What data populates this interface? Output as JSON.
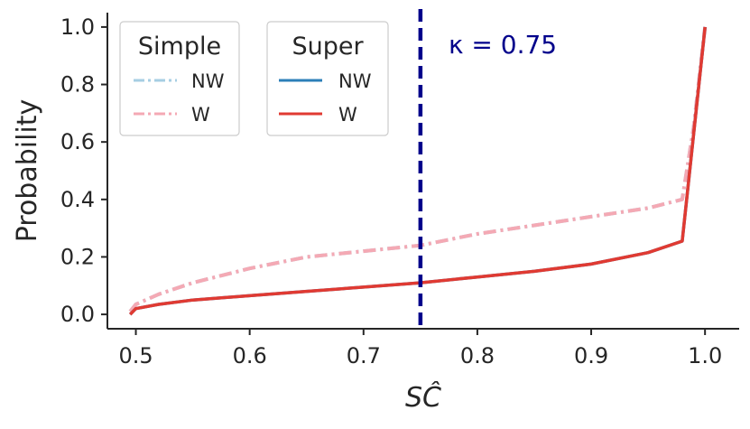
{
  "chart_data": {
    "type": "line",
    "xlabel": "SĈ",
    "ylabel": "Probability",
    "xlim": [
      0.475,
      1.03
    ],
    "ylim": [
      -0.05,
      1.05
    ],
    "xticks": [
      "0.5",
      "0.6",
      "0.7",
      "0.8",
      "0.9",
      "1.0"
    ],
    "yticks": [
      "0.0",
      "0.2",
      "0.4",
      "0.6",
      "0.8",
      "1.0"
    ],
    "grid": false,
    "legends": [
      {
        "title": "Simple",
        "placement": "top-left",
        "entries": [
          "NW",
          "W"
        ]
      },
      {
        "title": "Super",
        "placement": "top-left",
        "entries": [
          "NW",
          "W"
        ]
      }
    ],
    "threshold": {
      "x": 0.75,
      "label": "κ = 0.75",
      "color": "#00008b"
    },
    "series": [
      {
        "group": "Simple",
        "name": "NW",
        "color": "#a6cee3",
        "style": "dashdot",
        "x": [
          0.495,
          0.5,
          0.52,
          0.55,
          0.6,
          0.65,
          0.7,
          0.75,
          0.8,
          0.85,
          0.9,
          0.95,
          0.98,
          0.99,
          1.0
        ],
        "y": [
          0.01,
          0.035,
          0.07,
          0.11,
          0.16,
          0.2,
          0.22,
          0.24,
          0.28,
          0.31,
          0.34,
          0.37,
          0.4,
          0.65,
          1.0
        ]
      },
      {
        "group": "Simple",
        "name": "W",
        "color": "#f4a9b4",
        "style": "dashdot",
        "x": [
          0.495,
          0.5,
          0.52,
          0.55,
          0.6,
          0.65,
          0.7,
          0.75,
          0.8,
          0.85,
          0.9,
          0.95,
          0.98,
          0.99,
          1.0
        ],
        "y": [
          0.01,
          0.035,
          0.07,
          0.11,
          0.16,
          0.2,
          0.22,
          0.24,
          0.28,
          0.31,
          0.34,
          0.37,
          0.4,
          0.65,
          1.0
        ]
      },
      {
        "group": "Super",
        "name": "NW",
        "color": "#2c7fb8",
        "style": "solid",
        "x": [
          0.495,
          0.5,
          0.52,
          0.55,
          0.6,
          0.65,
          0.7,
          0.75,
          0.8,
          0.85,
          0.9,
          0.95,
          0.98,
          1.0
        ],
        "y": [
          0.0,
          0.02,
          0.035,
          0.05,
          0.065,
          0.08,
          0.095,
          0.11,
          0.13,
          0.15,
          0.175,
          0.215,
          0.255,
          1.0
        ]
      },
      {
        "group": "Super",
        "name": "W",
        "color": "#e03a32",
        "style": "solid",
        "x": [
          0.495,
          0.5,
          0.52,
          0.55,
          0.6,
          0.65,
          0.7,
          0.75,
          0.8,
          0.85,
          0.9,
          0.95,
          0.98,
          1.0
        ],
        "y": [
          0.0,
          0.02,
          0.035,
          0.05,
          0.065,
          0.08,
          0.095,
          0.11,
          0.13,
          0.15,
          0.175,
          0.215,
          0.255,
          1.0
        ]
      }
    ]
  }
}
